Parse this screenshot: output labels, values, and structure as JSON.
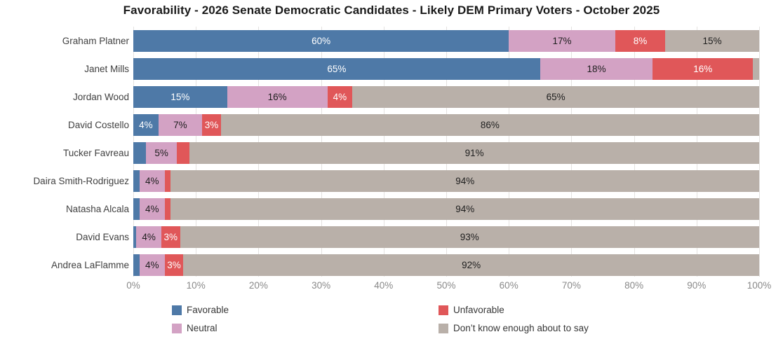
{
  "title": "Favorability - 2026 Senate Democratic Candidates - Likely DEM Primary Voters - October 2025",
  "colors": {
    "favorable": "#4e79a7",
    "neutral": "#d3a2c4",
    "unfavorable": "#e05759",
    "dont_know": "#b9b0a9",
    "gridline": "#e4e2e0",
    "label_on_dark": "#ffffff",
    "label_on_light": "#1f1f1f"
  },
  "chart_data": {
    "type": "bar",
    "orientation": "horizontal",
    "stacked": true,
    "title": "Favorability - 2026 Senate Democratic Candidates - Likely DEM Primary Voters - October 2025",
    "xlabel": "",
    "ylabel": "",
    "xlim": [
      0,
      100
    ],
    "x_ticks": [
      "0%",
      "10%",
      "20%",
      "30%",
      "40%",
      "50%",
      "60%",
      "70%",
      "80%",
      "90%",
      "100%"
    ],
    "grid": true,
    "legend_position": "bottom",
    "categories": [
      "Graham Platner",
      "Janet Mills",
      "Jordan Wood",
      "David Costello",
      "Tucker Favreau",
      "Daira Smith-Rodriguez",
      "Natasha Alcala",
      "David Evans",
      "Andrea LaFlamme"
    ],
    "series": [
      {
        "name": "Favorable",
        "color_key": "favorable",
        "label_color": "#ffffff",
        "values": [
          60,
          65,
          15,
          4,
          2,
          1,
          1,
          0.5,
          1
        ],
        "labels": [
          "60%",
          "65%",
          "15%",
          "4%",
          "",
          "",
          "",
          "",
          ""
        ]
      },
      {
        "name": "Neutral",
        "color_key": "neutral",
        "label_color": "#1f1f1f",
        "values": [
          17,
          18,
          16,
          7,
          5,
          4,
          4,
          4,
          4
        ],
        "labels": [
          "17%",
          "18%",
          "16%",
          "7%",
          "5%",
          "4%",
          "4%",
          "4%",
          "4%"
        ]
      },
      {
        "name": "Unfavorable",
        "color_key": "unfavorable",
        "label_color": "#ffffff",
        "values": [
          8,
          16,
          4,
          3,
          2,
          1,
          1,
          3,
          3
        ],
        "labels": [
          "8%",
          "16%",
          "4%",
          "3%",
          "",
          "",
          "",
          "3%",
          "3%"
        ]
      },
      {
        "name": "Don’t know enough about to say",
        "color_key": "dont_know",
        "label_color": "#1f1f1f",
        "values": [
          15,
          1,
          65,
          86,
          91,
          94,
          94,
          93,
          92
        ],
        "labels": [
          "15%",
          "",
          "65%",
          "86%",
          "91%",
          "94%",
          "94%",
          "93%",
          "92%"
        ]
      }
    ]
  },
  "legend": {
    "items": [
      {
        "label": "Favorable",
        "color_key": "favorable"
      },
      {
        "label": "Neutral",
        "color_key": "neutral"
      },
      {
        "label": "Unfavorable",
        "color_key": "unfavorable"
      },
      {
        "label": "Don’t know enough about to say",
        "color_key": "dont_know"
      }
    ]
  }
}
